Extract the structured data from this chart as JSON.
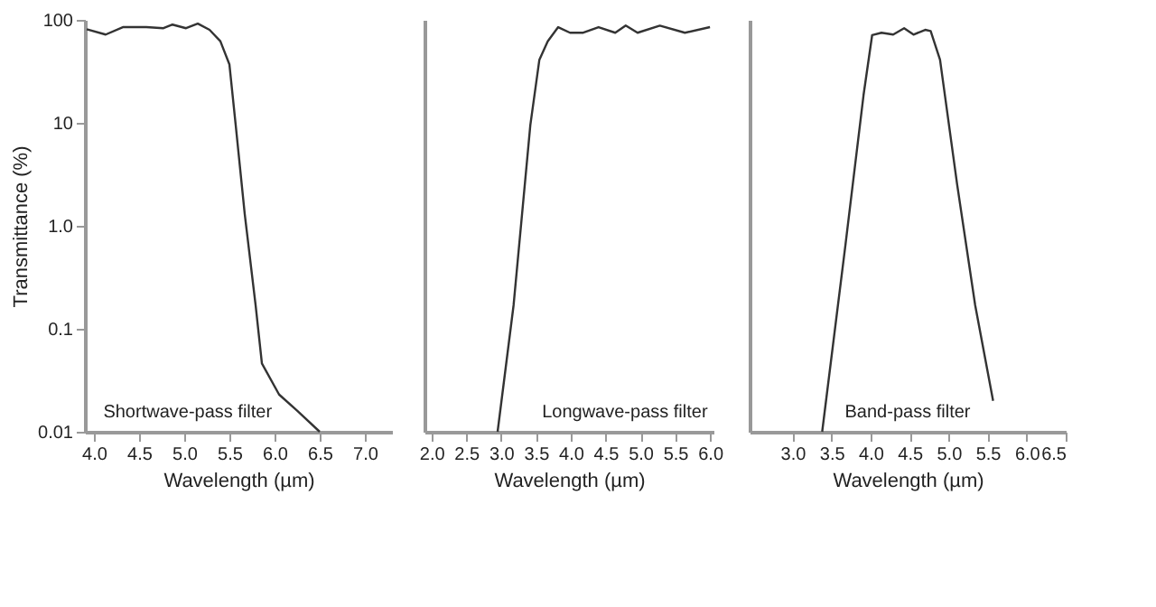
{
  "chart_data": [
    {
      "type": "line",
      "color": "#333333",
      "xlabel": "Wavelength (µm)",
      "ylabel": "Transmittance (%)",
      "log": true,
      "grid": false,
      "marker": "none",
      "line_style": "solid",
      "x": [
        3.92,
        4.13,
        4.32,
        4.58,
        4.77,
        4.87,
        5.02,
        5.15,
        5.28,
        5.4,
        5.5,
        5.57,
        5.67,
        5.79,
        5.86,
        6.05,
        6.25,
        6.5
      ],
      "values": [
        81,
        72,
        85,
        85,
        83,
        90,
        83,
        92,
        80,
        62,
        37,
        9.5,
        1.3,
        0.17,
        0.046,
        0.023,
        0.016,
        0.01
      ],
      "xlim": [
        3.9,
        7.3
      ],
      "xticks": [
        {
          "value": 4,
          "label": "4.0"
        },
        4.5,
        {
          "value": 5,
          "label": "5.0"
        },
        5.5,
        {
          "value": 6,
          "label": "6.0"
        },
        6.5,
        {
          "value": 7,
          "label": "7.0"
        }
      ],
      "ylim": [
        0.01,
        100
      ],
      "yticks": [
        0.01,
        0.1,
        {
          "value": 1,
          "label": "1.0"
        },
        10,
        100
      ],
      "annotations": [
        "Shortwave-pass filter"
      ]
    },
    {
      "type": "line",
      "color": "#333333",
      "xlabel": "Wavelength (µm)",
      "log": true,
      "grid": false,
      "marker": "none",
      "line_style": "solid",
      "tick_labels": "x",
      "x": [
        2.95,
        3.18,
        3.42,
        3.55,
        3.67,
        3.82,
        3.99,
        4.18,
        4.4,
        4.64,
        4.79,
        4.96,
        5.28,
        5.64,
        6.0
      ],
      "values": [
        0.01,
        0.17,
        9.5,
        41,
        62,
        85,
        75,
        75,
        85,
        75,
        88,
        75,
        88,
        75,
        85
      ],
      "xlim": [
        1.9,
        6.05
      ],
      "xticks": [
        {
          "value": 2,
          "label": "2.0"
        },
        2.5,
        {
          "value": 3,
          "label": "3.0"
        },
        3.5,
        {
          "value": 4,
          "label": "4.0"
        },
        4.5,
        {
          "value": 5,
          "label": "5.0"
        },
        5.5,
        {
          "value": 6,
          "label": "6.0"
        }
      ],
      "ylim": [
        0.01,
        100
      ],
      "annotations": [
        "Longwave-pass filter"
      ]
    },
    {
      "type": "line",
      "color": "#333333",
      "xlabel": "Wavelength (µm)",
      "log": true,
      "grid": false,
      "marker": "none",
      "line_style": "solid",
      "tick_labels": "x",
      "x": [
        3.38,
        3.68,
        3.91,
        4.02,
        4.14,
        4.29,
        4.43,
        4.55,
        4.7,
        4.77,
        4.89,
        5.11,
        5.34,
        5.57
      ],
      "values": [
        0.01,
        0.67,
        18.6,
        71,
        75,
        72,
        83,
        72,
        80,
        78,
        41,
        2.5,
        0.17,
        0.02
      ],
      "xlim": [
        2.45,
        6.5
      ],
      "xticks": [
        {
          "value": 3,
          "label": "3.0"
        },
        3.5,
        {
          "value": 4,
          "label": "4.0"
        },
        4.5,
        {
          "value": 5,
          "label": "5.0"
        },
        5.5,
        {
          "value": 6,
          "label": "6.0"
        },
        6.5
      ],
      "ylim": [
        0.01,
        100
      ],
      "annotations": [
        "Band-pass filter"
      ]
    }
  ]
}
